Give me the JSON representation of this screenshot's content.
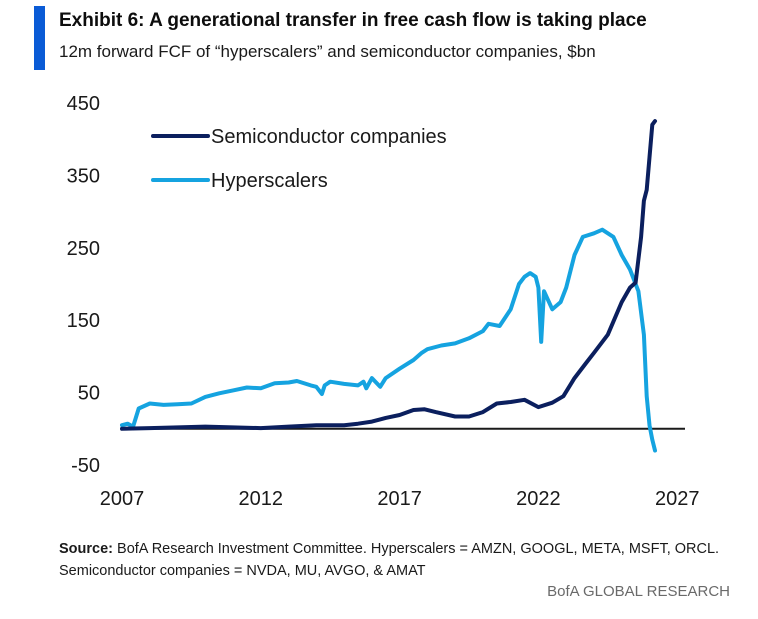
{
  "header": {
    "title": "Exhibit 6: A generational transfer in free cash flow is taking place",
    "subtitle": "12m forward FCF of “hyperscalers” and semiconductor companies, $bn"
  },
  "footer": {
    "source_label": "Source:",
    "source_text": "BofA Research Investment Committee. Hyperscalers = AMZN, GOOGL, META, MSFT, ORCL.",
    "source_text2": "Semiconductor companies = NVDA, MU, AVGO, & AMAT",
    "brand": "BofA GLOBAL RESEARCH"
  },
  "colors": {
    "accent": "#0a5bd6",
    "semiconductor": "#0b1f5e",
    "hyperscalers": "#15a3e0",
    "zero_line": "#1a1a1a"
  },
  "chart_data": {
    "type": "line",
    "x_axis": {
      "ticks": [
        2007,
        2012,
        2017,
        2022,
        2027
      ],
      "range": [
        2007,
        2028
      ]
    },
    "y_axis": {
      "ticks": [
        -50,
        50,
        150,
        250,
        350,
        450
      ],
      "tick_labels": [
        "-50",
        "50",
        "150",
        "250",
        "350",
        "450"
      ],
      "range": [
        -50,
        450
      ]
    },
    "grid": false,
    "legend_placement": "top-left",
    "series": [
      {
        "name": "Semiconductor companies",
        "color": "#0b1f5e",
        "points": [
          [
            2007.0,
            0
          ],
          [
            2008.0,
            1
          ],
          [
            2009.0,
            2
          ],
          [
            2010.0,
            3
          ],
          [
            2011.0,
            2
          ],
          [
            2012.0,
            1
          ],
          [
            2013.0,
            3
          ],
          [
            2014.0,
            5
          ],
          [
            2015.0,
            5
          ],
          [
            2015.5,
            7
          ],
          [
            2016.0,
            10
          ],
          [
            2016.5,
            15
          ],
          [
            2017.0,
            19
          ],
          [
            2017.5,
            26
          ],
          [
            2017.9,
            27
          ],
          [
            2018.3,
            23
          ],
          [
            2019.0,
            17
          ],
          [
            2019.5,
            17
          ],
          [
            2020.0,
            23
          ],
          [
            2020.5,
            35
          ],
          [
            2021.0,
            37
          ],
          [
            2021.5,
            40
          ],
          [
            2022.0,
            30
          ],
          [
            2022.5,
            36
          ],
          [
            2022.9,
            45
          ],
          [
            2023.3,
            70
          ],
          [
            2023.7,
            90
          ],
          [
            2024.0,
            105
          ],
          [
            2024.5,
            130
          ],
          [
            2025.0,
            175
          ],
          [
            2025.3,
            195
          ],
          [
            2025.5,
            202
          ],
          [
            2025.7,
            265
          ],
          [
            2025.8,
            315
          ],
          [
            2025.9,
            330
          ],
          [
            2026.0,
            375
          ],
          [
            2026.1,
            420
          ],
          [
            2026.2,
            425
          ]
        ]
      },
      {
        "name": "Hyperscalers",
        "color": "#15a3e0",
        "points": [
          [
            2007.0,
            5
          ],
          [
            2007.2,
            7
          ],
          [
            2007.4,
            3
          ],
          [
            2007.6,
            28
          ],
          [
            2008.0,
            35
          ],
          [
            2008.5,
            33
          ],
          [
            2009.0,
            34
          ],
          [
            2009.5,
            35
          ],
          [
            2010.0,
            44
          ],
          [
            2010.5,
            49
          ],
          [
            2011.0,
            53
          ],
          [
            2011.5,
            57
          ],
          [
            2012.0,
            56
          ],
          [
            2012.5,
            63
          ],
          [
            2013.0,
            64
          ],
          [
            2013.3,
            66
          ],
          [
            2013.8,
            60
          ],
          [
            2014.0,
            58
          ],
          [
            2014.2,
            48
          ],
          [
            2014.3,
            60
          ],
          [
            2014.5,
            65
          ],
          [
            2015.0,
            62
          ],
          [
            2015.5,
            60
          ],
          [
            2015.7,
            65
          ],
          [
            2015.8,
            56
          ],
          [
            2016.0,
            70
          ],
          [
            2016.3,
            58
          ],
          [
            2016.5,
            70
          ],
          [
            2017.0,
            83
          ],
          [
            2017.5,
            95
          ],
          [
            2017.8,
            105
          ],
          [
            2018.0,
            110
          ],
          [
            2018.5,
            115
          ],
          [
            2019.0,
            118
          ],
          [
            2019.5,
            125
          ],
          [
            2020.0,
            135
          ],
          [
            2020.2,
            145
          ],
          [
            2020.6,
            142
          ],
          [
            2021.0,
            165
          ],
          [
            2021.3,
            200
          ],
          [
            2021.5,
            210
          ],
          [
            2021.7,
            215
          ],
          [
            2021.9,
            210
          ],
          [
            2022.0,
            195
          ],
          [
            2022.1,
            120
          ],
          [
            2022.2,
            190
          ],
          [
            2022.5,
            165
          ],
          [
            2022.8,
            175
          ],
          [
            2023.0,
            195
          ],
          [
            2023.3,
            240
          ],
          [
            2023.6,
            265
          ],
          [
            2024.0,
            270
          ],
          [
            2024.3,
            275
          ],
          [
            2024.7,
            265
          ],
          [
            2025.0,
            240
          ],
          [
            2025.3,
            220
          ],
          [
            2025.6,
            190
          ],
          [
            2025.8,
            130
          ],
          [
            2025.9,
            45
          ],
          [
            2026.0,
            5
          ],
          [
            2026.1,
            -15
          ],
          [
            2026.2,
            -30
          ]
        ]
      }
    ]
  }
}
